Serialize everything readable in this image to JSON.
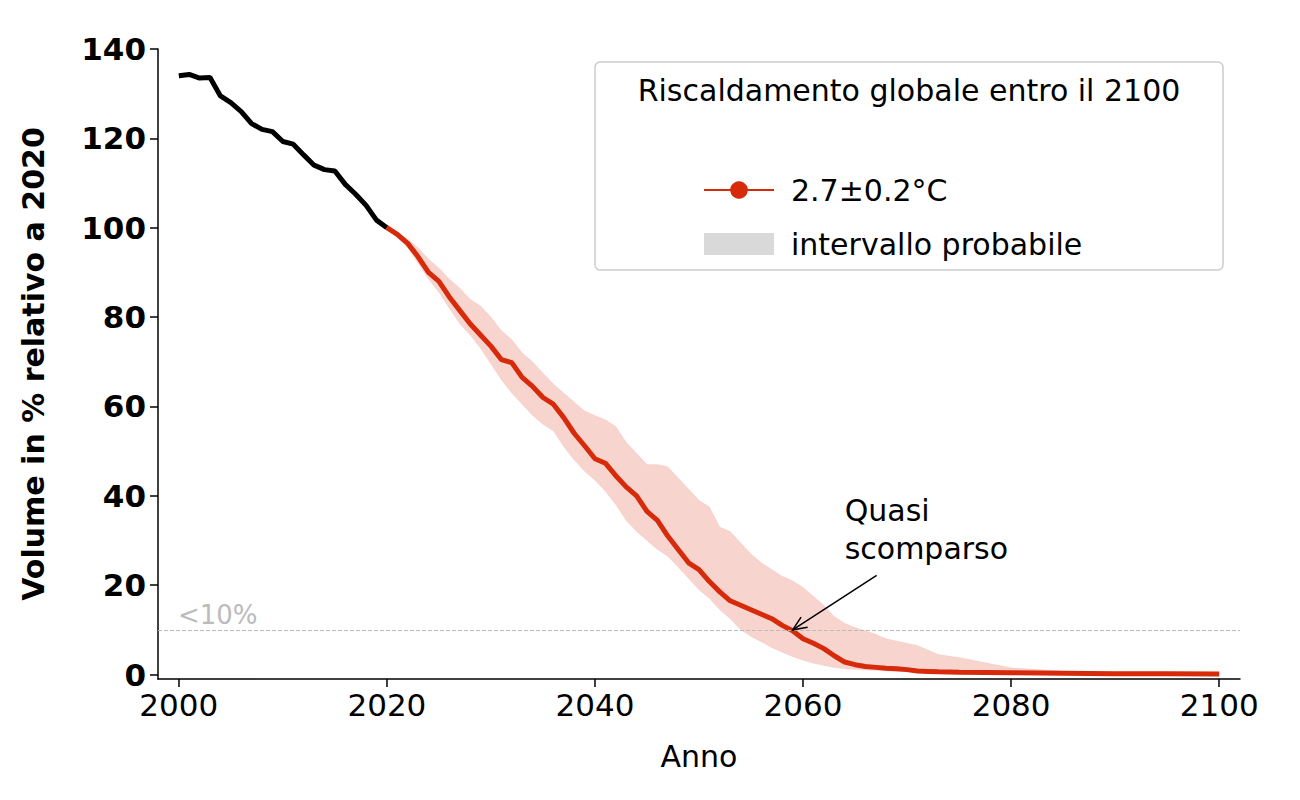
{
  "chart_data": {
    "type": "line",
    "x_label": "Anno",
    "y_label": "Volume in % relativo a 2020",
    "xlim": [
      1998,
      2102
    ],
    "xticks": [
      2000,
      2020,
      2040,
      2060,
      2080,
      2100
    ],
    "ylim": [
      -1,
      140
    ],
    "yticks": [
      0,
      20,
      40,
      60,
      80,
      100,
      120,
      140
    ],
    "grid": false,
    "legend": "upper right",
    "legend_title": "Riscaldamento globale entro il 2100",
    "series": [
      {
        "color": "#000000",
        "type": "line",
        "x": [
          2000,
          2001,
          2002,
          2003,
          2004,
          2005,
          2006,
          2007,
          2008,
          2009,
          2010,
          2011,
          2012,
          2013,
          2014,
          2015,
          2016,
          2017,
          2018,
          2019,
          2020
        ],
        "values": [
          134,
          134.3,
          133.5,
          133.6,
          129.5,
          128,
          126,
          123.3,
          122,
          121.5,
          119.3,
          118.7,
          116.3,
          114,
          113,
          112.7,
          109.7,
          107.5,
          105,
          101.7,
          100
        ]
      },
      {
        "name": "2.7±0.2°C",
        "color": "#d62a0a",
        "type": "line",
        "x": [
          2020,
          2021,
          2022,
          2023,
          2024,
          2025,
          2026,
          2027,
          2028,
          2029,
          2030,
          2031,
          2032,
          2033,
          2034,
          2035,
          2036,
          2037,
          2038,
          2039,
          2040,
          2041,
          2042,
          2043,
          2044,
          2045,
          2046,
          2047,
          2048,
          2049,
          2050,
          2051,
          2052,
          2053,
          2054,
          2055,
          2056,
          2057,
          2058,
          2059,
          2060,
          2061,
          2062,
          2063,
          2064,
          2065,
          2066,
          2067,
          2068,
          2069,
          2070,
          2071,
          2072,
          2073,
          2075,
          2080,
          2085,
          2090,
          2095,
          2100
        ],
        "values": [
          100,
          98.5,
          96.5,
          93.5,
          90,
          88,
          84.5,
          81.5,
          78.5,
          76,
          73.5,
          70.5,
          69.8,
          66.5,
          64.5,
          62,
          60.5,
          57.5,
          54,
          51.2,
          48.3,
          47.3,
          44.5,
          42,
          40,
          36.5,
          34.5,
          31,
          28,
          25,
          23.5,
          20.8,
          18.5,
          16.5,
          15.5,
          14.5,
          13.5,
          12.5,
          11,
          9.8,
          8,
          7,
          5.8,
          4.2,
          2.8,
          2.2,
          1.8,
          1.6,
          1.4,
          1.3,
          1.1,
          0.8,
          0.7,
          0.6,
          0.5,
          0.4,
          0.3,
          0.2,
          0.2,
          0.1
        ]
      },
      {
        "name": "intervallo probabile",
        "color": "#d9d9d9",
        "type": "band",
        "x": [
          2020,
          2022,
          2023,
          2024,
          2025,
          2026,
          2027,
          2028,
          2029,
          2030,
          2031,
          2032,
          2033,
          2034,
          2035,
          2036,
          2037,
          2038,
          2039,
          2040,
          2041,
          2042,
          2043,
          2044,
          2045,
          2046,
          2047,
          2048,
          2049,
          2050,
          2051,
          2052,
          2053,
          2054,
          2055,
          2056,
          2057,
          2058,
          2059,
          2060,
          2061,
          2062,
          2063,
          2064,
          2065,
          2066,
          2067,
          2068,
          2069,
          2070,
          2071,
          2072,
          2073,
          2075,
          2080,
          2085,
          2090,
          2095,
          2100
        ],
        "lower": [
          100,
          95.5,
          92,
          88.5,
          85.5,
          82,
          78.5,
          76,
          73,
          69.5,
          66,
          63,
          60.5,
          58,
          56,
          54.5,
          51,
          48,
          45.5,
          43.5,
          41,
          38,
          34.5,
          32,
          30,
          28,
          26.5,
          24,
          21.5,
          19,
          17,
          14.5,
          12.5,
          10,
          8.5,
          7.3,
          6,
          5,
          4,
          3.2,
          2.5,
          2,
          1.6,
          1.3,
          1.1,
          1,
          0.9,
          0.8,
          0.7,
          0.6,
          0.5,
          0.5,
          0.4,
          0.3,
          0.2,
          0.1,
          0.1,
          0.1,
          0
        ],
        "upper": [
          100,
          97.5,
          95.5,
          93,
          91,
          88.5,
          86.5,
          84,
          82.5,
          80,
          77,
          75,
          72,
          70,
          67.5,
          65,
          63,
          61,
          59,
          58,
          57,
          55.5,
          52,
          49.5,
          47,
          47,
          46.5,
          44,
          41.5,
          39,
          37.5,
          33,
          32,
          29.5,
          27,
          25,
          23.5,
          22,
          21,
          19.5,
          17.5,
          15.5,
          13,
          11.5,
          10.5,
          9.8,
          9,
          8,
          7.5,
          7,
          6.5,
          5.5,
          4.5,
          3.8,
          1.5,
          0.8,
          0.5,
          0.4,
          0.3
        ]
      }
    ],
    "hlines": [
      {
        "value": 10,
        "label": "<10%",
        "color": "#bbbbbb",
        "line_style": "dashed"
      }
    ],
    "annotations": [
      {
        "text": "Quasi\nscomparso",
        "xy": [
          2059,
          10
        ],
        "xytext": [
          2064,
          24
        ]
      }
    ]
  }
}
